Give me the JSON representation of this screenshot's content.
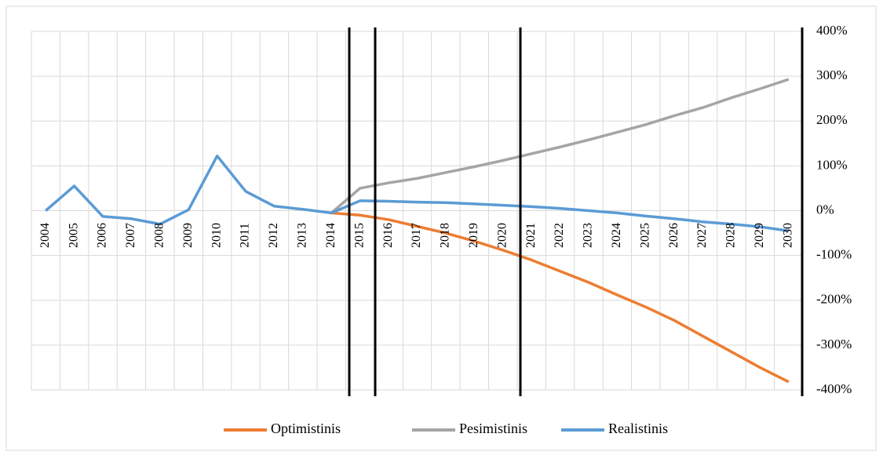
{
  "chart_data": {
    "type": "line",
    "categories": [
      "2004",
      "2005",
      "2006",
      "2007",
      "2008",
      "2009",
      "2010",
      "2011",
      "2012",
      "2013",
      "2014",
      "2015",
      "2016",
      "2017",
      "2018",
      "2019",
      "2020",
      "2021",
      "2022",
      "2023",
      "2024",
      "2025",
      "2026",
      "2027",
      "2028",
      "2029",
      "2030"
    ],
    "series": [
      {
        "name": "Optimistinis",
        "color": "#ed7d31",
        "values": [
          null,
          null,
          null,
          null,
          null,
          null,
          null,
          null,
          null,
          null,
          -5,
          -10,
          -20,
          -35,
          -50,
          -68,
          -88,
          -110,
          -135,
          -160,
          -188,
          -215,
          -245,
          -280,
          -315,
          -350,
          -382
        ]
      },
      {
        "name": "Pesimistinis",
        "color": "#a5a5a5",
        "values": [
          null,
          null,
          null,
          null,
          null,
          null,
          null,
          null,
          null,
          null,
          -5,
          50,
          62,
          72,
          85,
          98,
          112,
          127,
          142,
          158,
          175,
          192,
          212,
          230,
          252,
          272,
          293
        ]
      },
      {
        "name": "Realistinis",
        "color": "#5b9bd5",
        "values": [
          0,
          55,
          -13,
          -18,
          -30,
          2,
          122,
          43,
          10,
          3,
          -5,
          22,
          21,
          19,
          18,
          15,
          12,
          9,
          5,
          0,
          -5,
          -12,
          -18,
          -25,
          -30,
          -36,
          -45
        ]
      }
    ],
    "ylim": [
      -400,
      400
    ],
    "yticks": [
      {
        "value": -400,
        "label": "-400%"
      },
      {
        "value": -300,
        "label": "-300%"
      },
      {
        "value": -200,
        "label": "-200%"
      },
      {
        "value": -100,
        "label": "-100%"
      },
      {
        "value": 0,
        "label": "0%"
      },
      {
        "value": 100,
        "label": "100%"
      },
      {
        "value": 200,
        "label": "200%"
      },
      {
        "value": 300,
        "label": "300%"
      },
      {
        "value": 400,
        "label": "400%"
      }
    ],
    "grid": true,
    "legend": "bottom"
  }
}
